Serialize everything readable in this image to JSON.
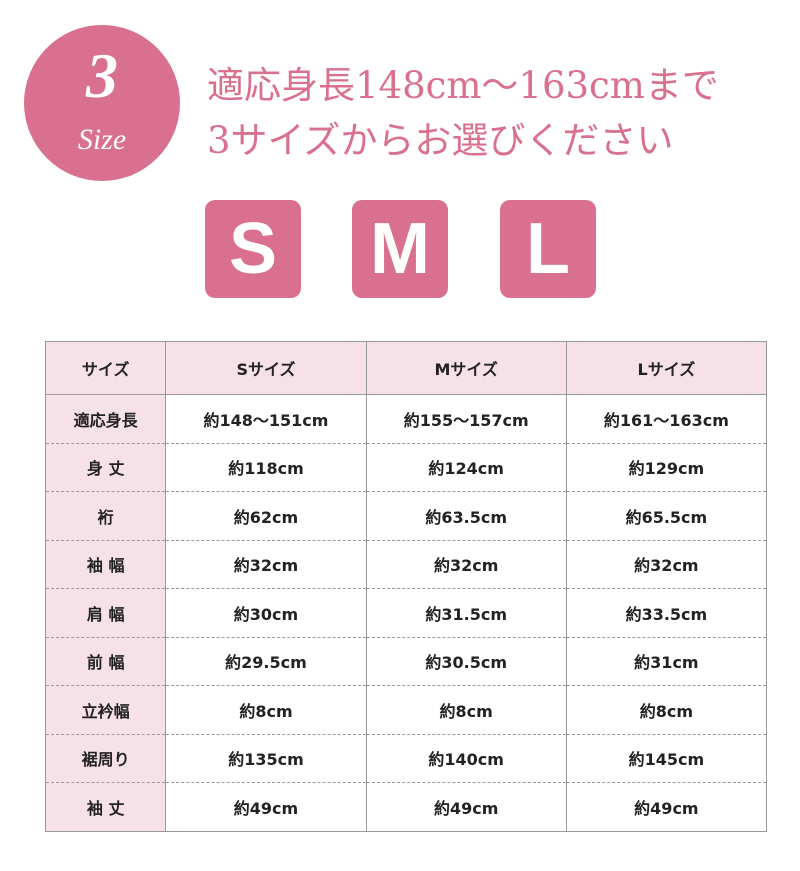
{
  "header": {
    "badge_number": "3",
    "badge_word": "Size",
    "title_lines": [
      "適応身長148cm〜163cmまで",
      "3サイズからお選びください"
    ]
  },
  "sizes": [
    "S",
    "M",
    "L"
  ],
  "table": {
    "columns": [
      "サイズ",
      "Sサイズ",
      "Mサイズ",
      "Lサイズ"
    ],
    "rows": [
      [
        "適応身長",
        "約148〜151cm",
        "約155〜157cm",
        "約161〜163cm"
      ],
      [
        "身 丈",
        "約118cm",
        "約124cm",
        "約129cm"
      ],
      [
        "裄",
        "約62cm",
        "約63.5cm",
        "約65.5cm"
      ],
      [
        "袖 幅",
        "約32cm",
        "約32cm",
        "約32cm"
      ],
      [
        "肩 幅",
        "約30cm",
        "約31.5cm",
        "約33.5cm"
      ],
      [
        "前 幅",
        "約29.5cm",
        "約30.5cm",
        "約31cm"
      ],
      [
        "立衿幅",
        "約8cm",
        "約8cm",
        "約8cm"
      ],
      [
        "裾周り",
        "約135cm",
        "約140cm",
        "約145cm"
      ],
      [
        "袖 丈",
        "約49cm",
        "約49cm",
        "約49cm"
      ]
    ]
  }
}
